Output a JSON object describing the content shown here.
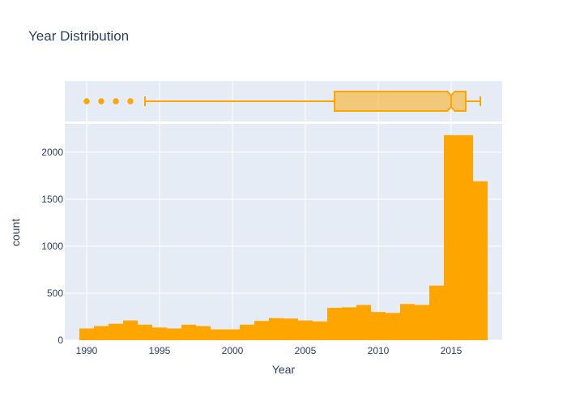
{
  "chart_data": [
    {
      "type": "box",
      "orientation": "horizontal",
      "variable": "Year",
      "whisker_low": 1994,
      "q1": 2007,
      "median": 2015,
      "notch_low": 2014.75,
      "notch_high": 2015.25,
      "q3": 2016,
      "whisker_high": 2017,
      "outliers": [
        1990,
        1991,
        1992,
        1993
      ],
      "xlim": [
        1988.5,
        2018.5
      ],
      "grid": true,
      "color": "#ffa500"
    },
    {
      "type": "bar",
      "title": "Year Distribution",
      "xlabel": "Year",
      "ylabel": "count",
      "bin_width": 1,
      "x": [
        1990,
        1991,
        1992,
        1993,
        1994,
        1995,
        1996,
        1997,
        1998,
        1999,
        2000,
        2001,
        2002,
        2003,
        2004,
        2005,
        2006,
        2007,
        2008,
        2009,
        2010,
        2011,
        2012,
        2013,
        2014,
        2015,
        2016,
        2017
      ],
      "values": [
        125,
        150,
        175,
        210,
        165,
        135,
        125,
        165,
        150,
        115,
        115,
        165,
        205,
        235,
        230,
        210,
        200,
        345,
        350,
        375,
        300,
        290,
        385,
        375,
        580,
        2180,
        2180,
        1690
      ],
      "xlim": [
        1988.5,
        2018.5
      ],
      "ylim": [
        0,
        2300
      ],
      "xticks": [
        "1990",
        "1995",
        "2000",
        "2005",
        "2010",
        "2015"
      ],
      "yticks": [
        "0",
        "500",
        "1000",
        "1500",
        "2000"
      ],
      "grid": true,
      "color": "#ffa500",
      "background": "#e5ecf6"
    }
  ]
}
